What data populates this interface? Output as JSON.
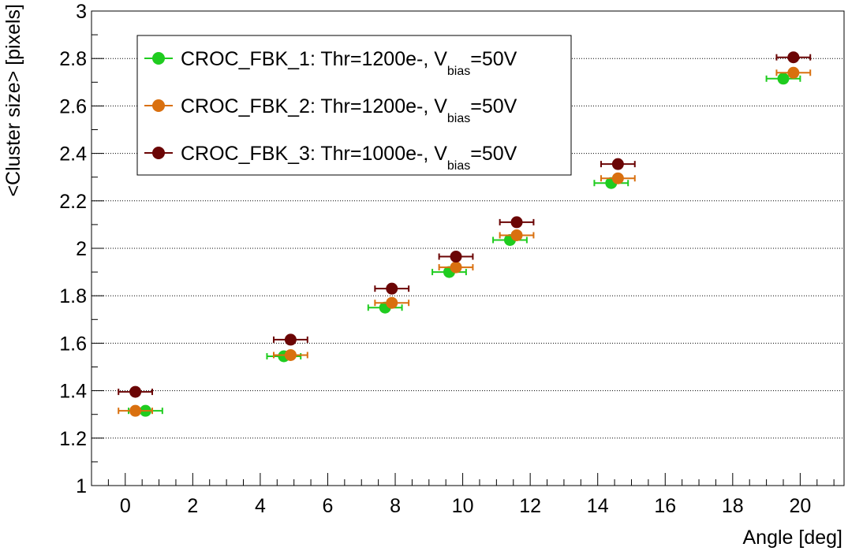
{
  "chart_data": {
    "type": "scatter",
    "title": "",
    "xlabel": "Angle [deg]",
    "ylabel": "<Cluster size> [pixels]",
    "xlim": [
      -1,
      21.3
    ],
    "ylim": [
      1,
      3
    ],
    "x_ticks": [
      0,
      2,
      4,
      6,
      8,
      10,
      12,
      14,
      16,
      18,
      20
    ],
    "y_ticks": [
      1,
      1.2,
      1.4,
      1.6,
      1.8,
      2,
      2.2,
      2.4,
      2.6,
      2.8,
      3
    ],
    "x_tick_labels": [
      "0",
      "2",
      "4",
      "6",
      "8",
      "10",
      "12",
      "14",
      "16",
      "18",
      "20"
    ],
    "y_tick_labels": [
      "1",
      "1.2",
      "1.4",
      "1.6",
      "1.8",
      "2",
      "2.2",
      "2.4",
      "2.6",
      "2.8",
      "3"
    ],
    "grid": "horizontal-dotted",
    "legend_position": "top-left",
    "series": [
      {
        "name": "CROC_FBK_1",
        "legend": {
          "main": "CROC_FBK_1: Thr=1200e-, V",
          "sub": "bias",
          "tail": "=50V"
        },
        "color": "#1fcc1f",
        "x": [
          0.6,
          4.7,
          7.7,
          9.6,
          11.4,
          14.4,
          19.5
        ],
        "y": [
          1.315,
          1.545,
          1.75,
          1.9,
          2.035,
          2.275,
          2.715
        ],
        "xerr": [
          0.5,
          0.5,
          0.5,
          0.5,
          0.5,
          0.5,
          0.5
        ]
      },
      {
        "name": "CROC_FBK_2",
        "legend": {
          "main": "CROC_FBK_2: Thr=1200e-, V",
          "sub": "bias",
          "tail": "=50V"
        },
        "color": "#d9700f",
        "x": [
          0.3,
          4.9,
          7.9,
          9.8,
          11.6,
          14.6,
          19.8
        ],
        "y": [
          1.315,
          1.55,
          1.77,
          1.92,
          2.055,
          2.295,
          2.74
        ],
        "xerr": [
          0.5,
          0.5,
          0.5,
          0.5,
          0.5,
          0.5,
          0.5
        ]
      },
      {
        "name": "CROC_FBK_3",
        "legend": {
          "main": "CROC_FBK_3: Thr=1000e-, V",
          "sub": "bias",
          "tail": "=50V"
        },
        "color": "#6b0505",
        "x": [
          0.3,
          4.9,
          7.9,
          9.8,
          11.6,
          14.6,
          19.8
        ],
        "y": [
          1.395,
          1.615,
          1.83,
          1.965,
          2.11,
          2.355,
          2.805
        ],
        "xerr": [
          0.5,
          0.5,
          0.5,
          0.5,
          0.5,
          0.5,
          0.5
        ]
      }
    ]
  }
}
